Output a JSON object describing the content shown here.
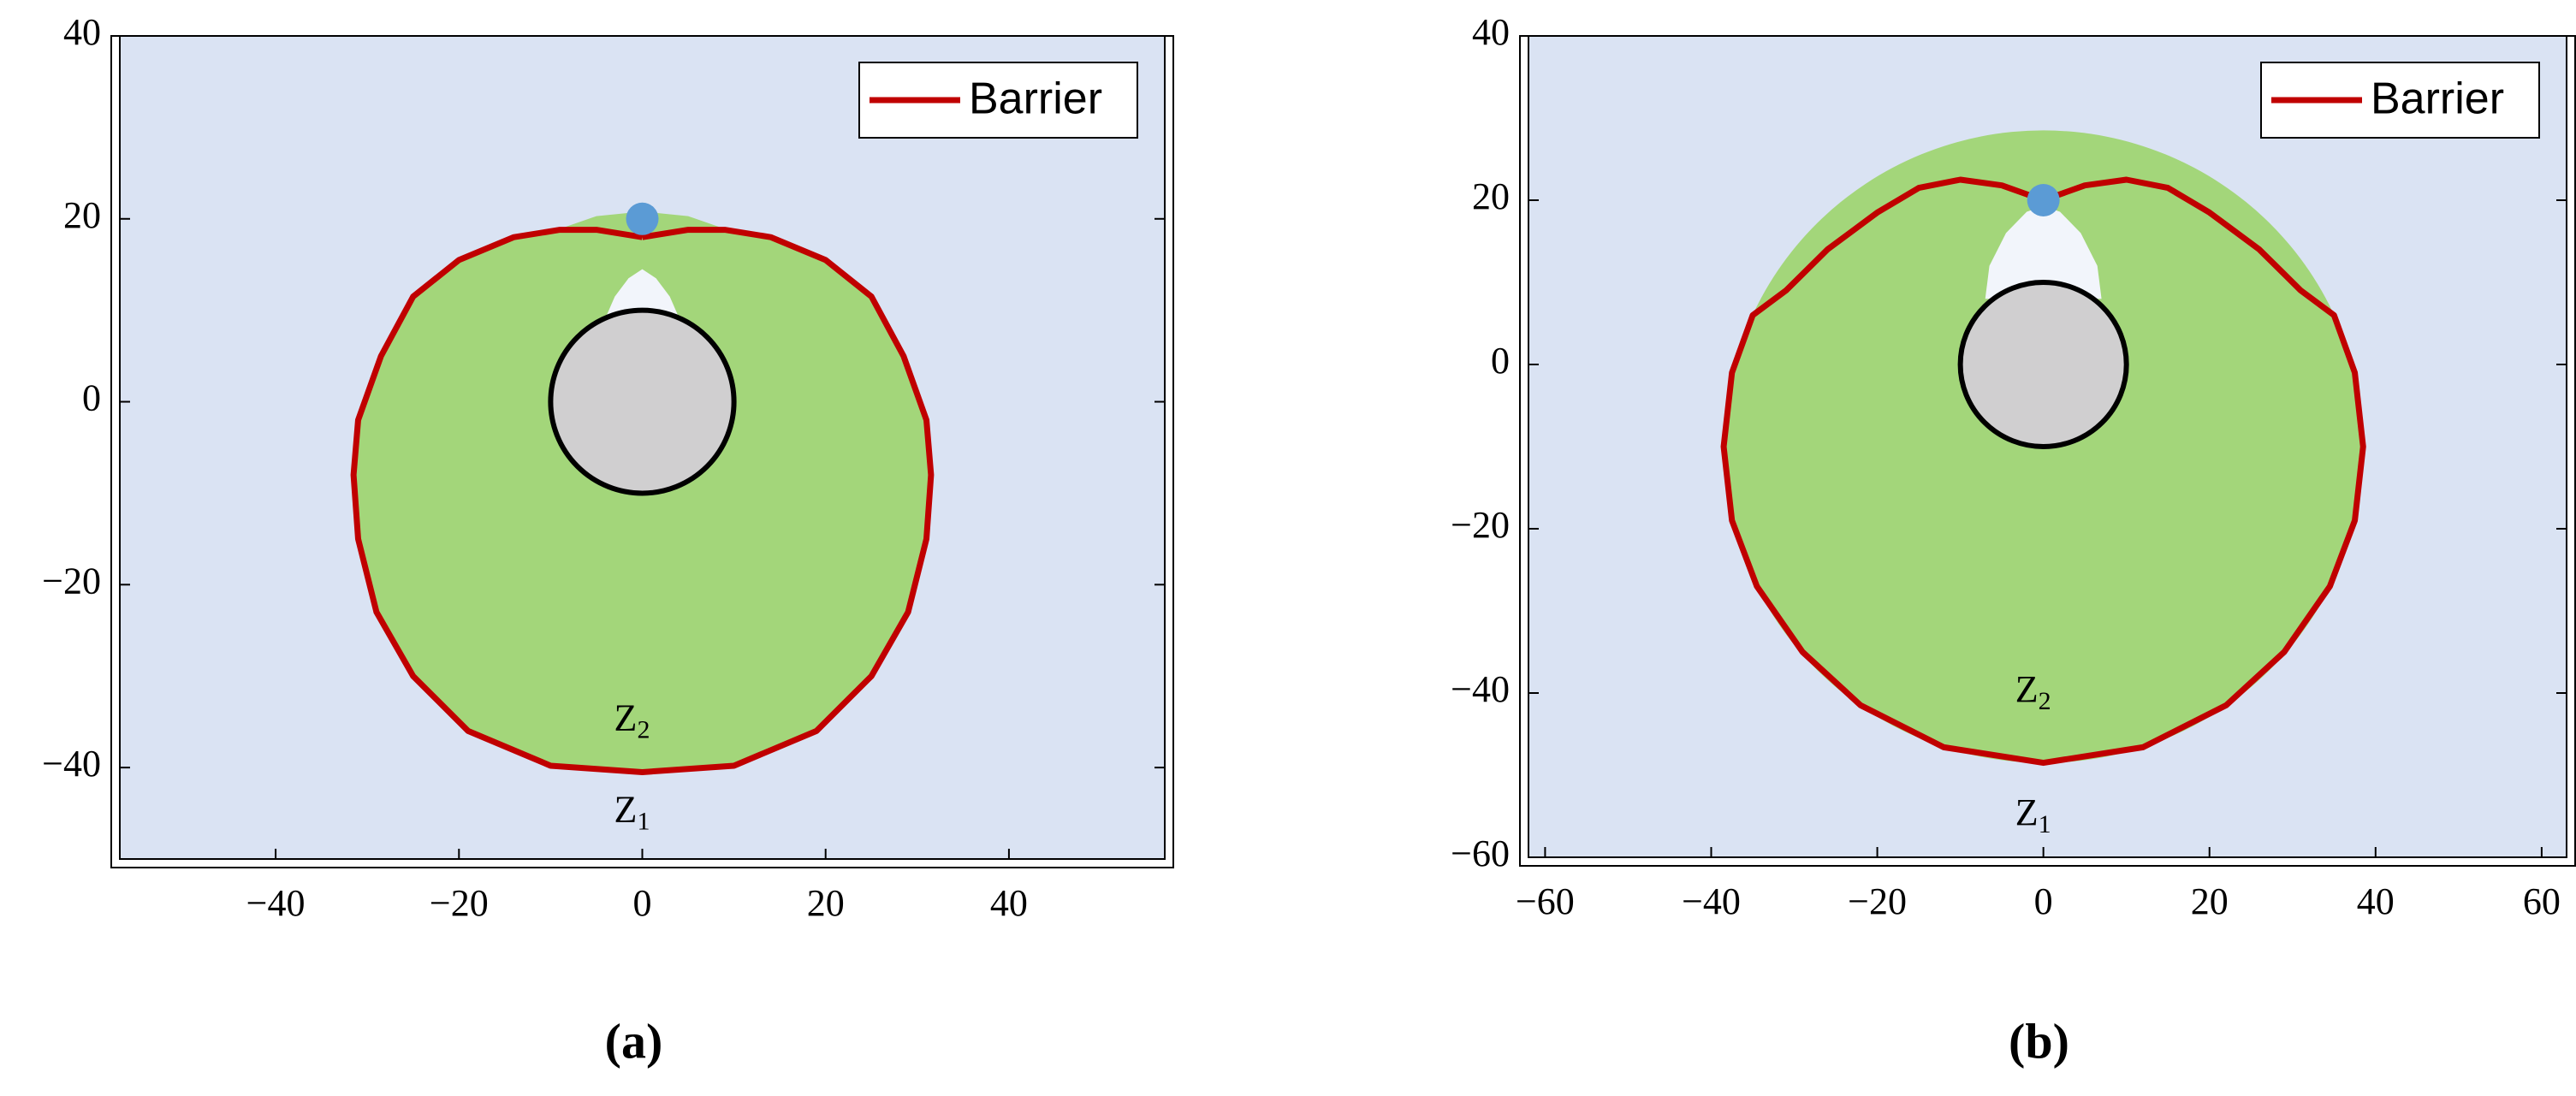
{
  "chart_data": [
    {
      "type": "line",
      "panel_label": "(a)",
      "xlim": [
        -57,
        57
      ],
      "ylim": [
        -50,
        40
      ],
      "xticks": [
        {
          "value": -40,
          "label": "−40"
        },
        {
          "value": -20,
          "label": "−20"
        },
        0,
        20,
        40
      ],
      "yticks": [
        {
          "value": -40,
          "label": "−40"
        },
        {
          "value": -20,
          "label": "−20"
        },
        0,
        20,
        40
      ],
      "background": "#dae3f3",
      "legend": "upper right",
      "reachable_region": {
        "color": "#a3d67a",
        "x": [
          0,
          5,
          9,
          14,
          20,
          25,
          28.5,
          31,
          31.5,
          31,
          29,
          25,
          19,
          10,
          0,
          -10,
          -19,
          -25,
          -29,
          -31,
          -31.5,
          -31,
          -28.5,
          -25,
          -20,
          -14,
          -9,
          -5
        ],
        "y": [
          20.8,
          20.3,
          18.9,
          18,
          15.5,
          11.5,
          5,
          -2,
          -8,
          -15,
          -23,
          -30,
          -36,
          -39.8,
          -40.5,
          -39.8,
          -36,
          -30,
          -23,
          -15,
          -8,
          -2,
          5,
          11.5,
          15.5,
          18,
          18.9,
          20.3
        ]
      },
      "excluded_region": {
        "color": "#f2f5fb",
        "x": [
          -4,
          -3,
          -1.5,
          0,
          1.5,
          3,
          4
        ],
        "y": [
          9.2,
          11.5,
          13.5,
          14.5,
          13.5,
          11.5,
          9.2
        ]
      },
      "obstacle": {
        "cx": 0,
        "cy": 0,
        "r": 10,
        "color": "#d0cfd0"
      },
      "target": {
        "x": 0,
        "y": 20,
        "color": "#5b9bd5"
      },
      "series": [
        {
          "name": "Barrier",
          "color": "#c00000",
          "x": [
            0,
            5,
            9,
            14,
            20,
            25,
            28.5,
            31,
            31.5,
            31,
            29,
            25,
            19,
            10,
            0,
            -10,
            -19,
            -25,
            -29,
            -31,
            -31.5,
            -31,
            -28.5,
            -25,
            -20,
            -14,
            -9,
            -5,
            0
          ],
          "y": [
            18,
            18.8,
            18.8,
            18,
            15.5,
            11.5,
            5,
            -2,
            -8,
            -15,
            -23,
            -30,
            -36,
            -39.8,
            -40.5,
            -39.8,
            -36,
            -30,
            -23,
            -15,
            -8,
            -2,
            5,
            11.5,
            15.5,
            18,
            18.8,
            18.8,
            18
          ]
        }
      ],
      "annotations": [
        {
          "text": "Z",
          "sub": "2",
          "x": 0,
          "y": -35
        },
        {
          "text": "Z",
          "sub": "1",
          "x": 0,
          "y": -45
        }
      ]
    },
    {
      "type": "line",
      "panel_label": "(b)",
      "xlim": [
        -62,
        63
      ],
      "ylim": [
        -60,
        40
      ],
      "xticks": [
        {
          "value": -60,
          "label": "−60"
        },
        {
          "value": -40,
          "label": "−40"
        },
        {
          "value": -20,
          "label": "−20"
        },
        0,
        20,
        40,
        60
      ],
      "yticks": [
        {
          "value": -60,
          "label": "−60"
        },
        {
          "value": -40,
          "label": "−40"
        },
        {
          "value": -20,
          "label": "−20"
        },
        0,
        20,
        40
      ],
      "background": "#dae3f3",
      "legend": "upper right",
      "reachable_region": {
        "color": "#a3d67a",
        "cx": 0,
        "cy": -10,
        "r": 38.5
      },
      "excluded_region": {
        "color": "#f2f5fb",
        "x": [
          -7,
          -6.5,
          -4.5,
          -2,
          0,
          2,
          4.5,
          6.5,
          7
        ],
        "y": [
          8,
          12,
          16,
          18.6,
          19.3,
          18.6,
          16,
          12,
          8
        ]
      },
      "obstacle": {
        "cx": 0,
        "cy": 0,
        "r": 10,
        "color": "#d0cfd0"
      },
      "target": {
        "x": 0,
        "y": 20,
        "color": "#5b9bd5"
      },
      "series": [
        {
          "name": "Barrier",
          "color": "#c00000",
          "x": [
            0,
            5,
            10,
            15,
            20,
            26,
            31,
            35,
            37.5,
            38.5,
            37.5,
            34.5,
            29,
            22,
            12,
            0,
            -12,
            -22,
            -29,
            -34.5,
            -37.5,
            -38.5,
            -37.5,
            -35,
            -31,
            -26,
            -20,
            -15,
            -10,
            -5,
            0
          ],
          "y": [
            20,
            21.8,
            22.5,
            21.5,
            18.5,
            14,
            9,
            6,
            -1,
            -10,
            -19,
            -27,
            -35,
            -41.5,
            -46.6,
            -48.5,
            -46.6,
            -41.5,
            -35,
            -27,
            -19,
            -10,
            -1,
            6,
            9,
            14,
            18.5,
            21.5,
            22.5,
            21.8,
            20
          ]
        }
      ],
      "annotations": [
        {
          "text": "Z",
          "sub": "2",
          "x": 0,
          "y": -40
        },
        {
          "text": "Z",
          "sub": "1",
          "x": 0,
          "y": -55
        }
      ]
    }
  ]
}
